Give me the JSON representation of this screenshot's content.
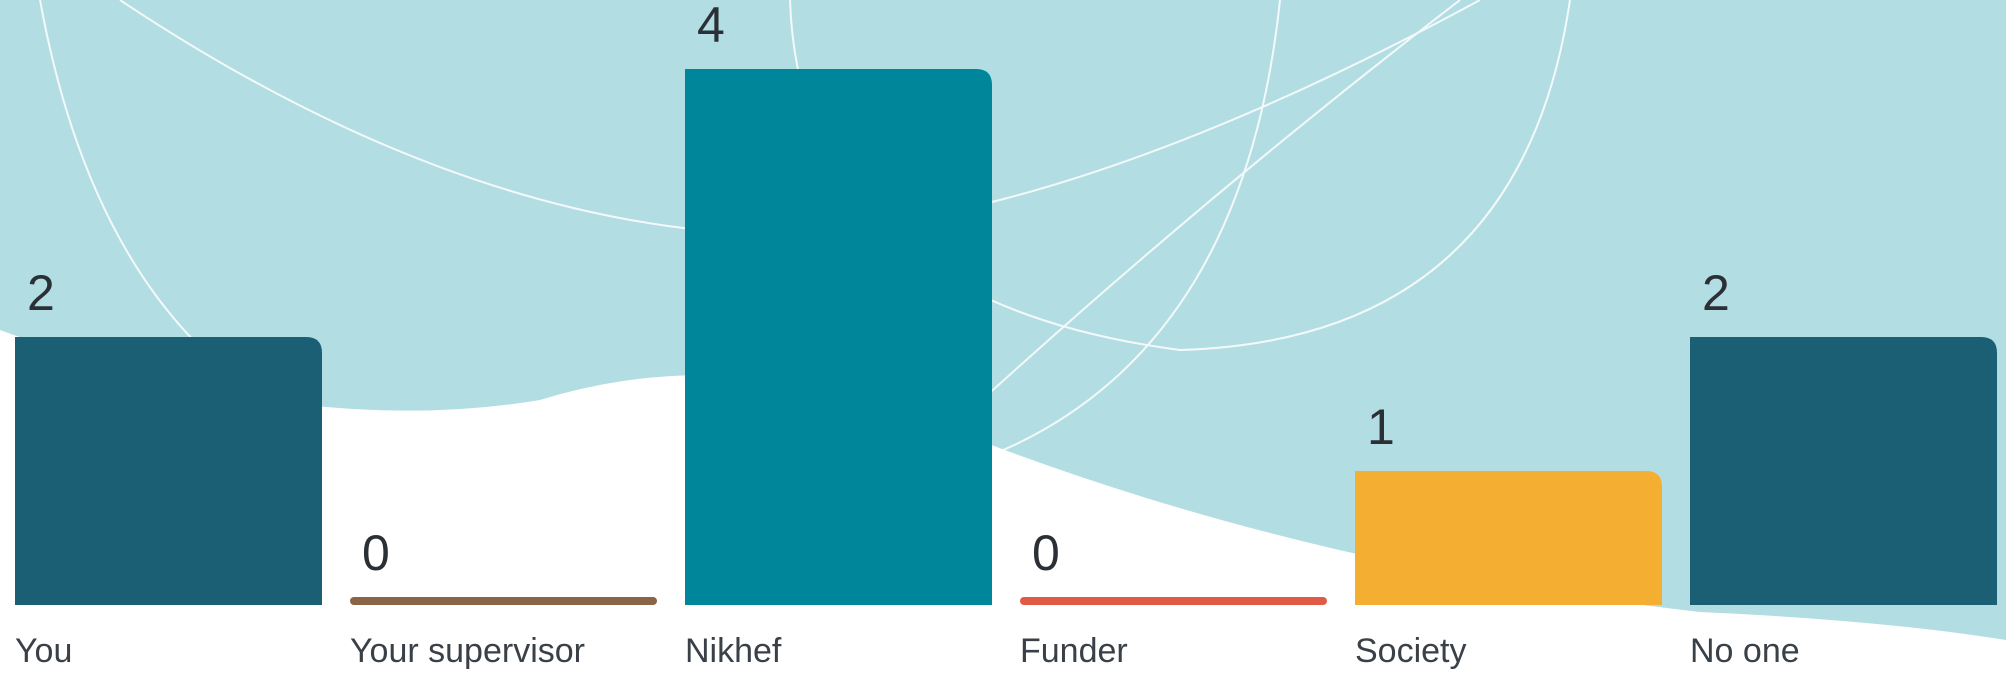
{
  "chart_data": {
    "type": "bar",
    "categories": [
      "You",
      "Your supervisor",
      "Nikhef",
      "Funder",
      "Society",
      "No one"
    ],
    "values": [
      2,
      0,
      4,
      0,
      1,
      2
    ],
    "colors": [
      "#1b5f75",
      "#8a6446",
      "#00869a",
      "#e05a45",
      "#f4ae32",
      "#1b5f75"
    ]
  }
}
